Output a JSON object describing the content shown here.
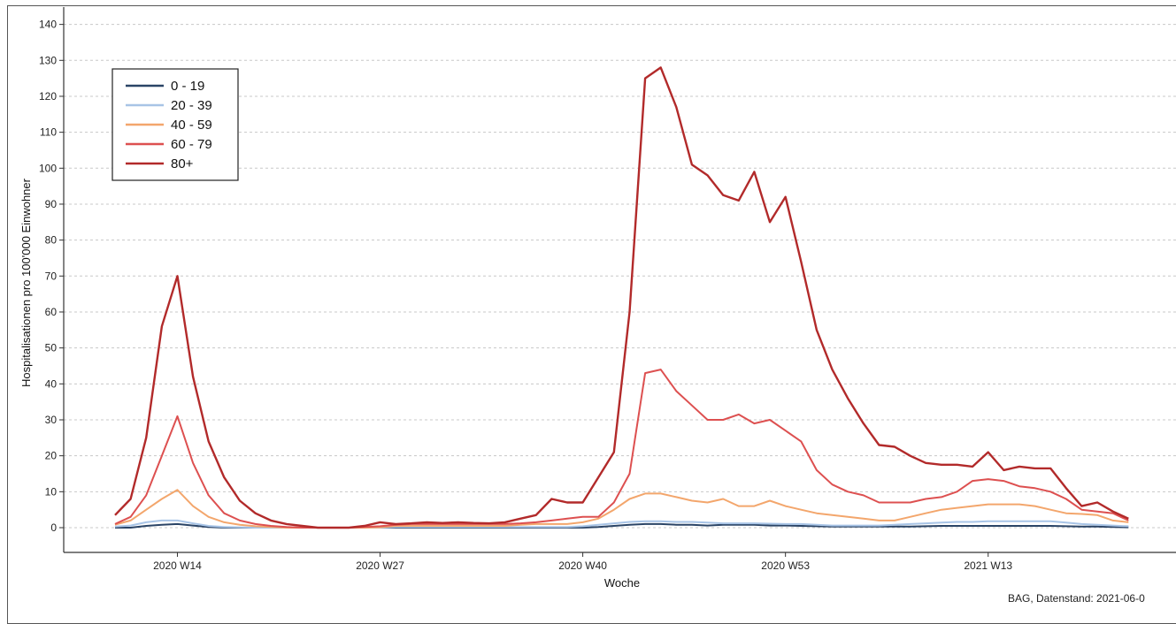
{
  "chart_data": {
    "type": "line",
    "title": "",
    "xlabel": "Woche",
    "ylabel": "Hospitalisationen pro 100'000 Einwohner",
    "ylim": [
      -7,
      143
    ],
    "yticks": [
      0,
      10,
      20,
      30,
      40,
      50,
      60,
      70,
      80,
      90,
      100,
      110,
      120,
      130,
      140
    ],
    "grid": "horizontal dashed",
    "legend_position": "top-left",
    "x_weeks": [
      "2020 W10",
      "2020 W11",
      "2020 W12",
      "2020 W13",
      "2020 W14",
      "2020 W15",
      "2020 W16",
      "2020 W17",
      "2020 W18",
      "2020 W19",
      "2020 W20",
      "2020 W21",
      "2020 W22",
      "2020 W23",
      "2020 W24",
      "2020 W25",
      "2020 W26",
      "2020 W27",
      "2020 W28",
      "2020 W29",
      "2020 W30",
      "2020 W31",
      "2020 W32",
      "2020 W33",
      "2020 W34",
      "2020 W35",
      "2020 W36",
      "2020 W37",
      "2020 W38",
      "2020 W39",
      "2020 W40",
      "2020 W41",
      "2020 W42",
      "2020 W43",
      "2020 W44",
      "2020 W45",
      "2020 W46",
      "2020 W47",
      "2020 W48",
      "2020 W49",
      "2020 W50",
      "2020 W51",
      "2020 W52",
      "2020 W53",
      "2021 W01",
      "2021 W02",
      "2021 W03",
      "2021 W04",
      "2021 W05",
      "2021 W06",
      "2021 W07",
      "2021 W08",
      "2021 W09",
      "2021 W10",
      "2021 W11",
      "2021 W12",
      "2021 W13",
      "2021 W14",
      "2021 W15",
      "2021 W16",
      "2021 W17",
      "2021 W18",
      "2021 W19",
      "2021 W20",
      "2021 W21",
      "2021 W22"
    ],
    "x_tick_labels": [
      {
        "week": "2020 W14",
        "label": "2020 W14"
      },
      {
        "week": "2020 W27",
        "label": "2020 W27"
      },
      {
        "week": "2020 W40",
        "label": "2020 W40"
      },
      {
        "week": "2020 W53",
        "label": "2020 W53"
      },
      {
        "week": "2021 W13",
        "label": "2021 W13"
      }
    ],
    "series": [
      {
        "name": "0 - 19",
        "color": "#2a4466",
        "values": [
          0,
          0,
          0.5,
          0.8,
          1,
          0.6,
          0.2,
          0,
          0,
          0,
          0,
          0,
          0,
          0,
          0,
          0,
          0,
          0,
          0,
          0,
          0,
          0,
          0,
          0,
          0,
          0,
          0,
          0,
          0,
          0,
          0,
          0.2,
          0.5,
          0.8,
          1,
          1,
          0.8,
          0.8,
          0.6,
          0.8,
          0.8,
          0.8,
          0.6,
          0.6,
          0.5,
          0.4,
          0.3,
          0.3,
          0.3,
          0.3,
          0.3,
          0.3,
          0.4,
          0.5,
          0.5,
          0.5,
          0.5,
          0.5,
          0.5,
          0.5,
          0.5,
          0.4,
          0.3,
          0.3,
          0.2,
          0.1
        ]
      },
      {
        "name": "20 - 39",
        "color": "#a8c4e6",
        "values": [
          0.3,
          0.6,
          1.5,
          2,
          2,
          1.2,
          0.5,
          0.2,
          0.1,
          0,
          0,
          0,
          0,
          0,
          0,
          0,
          0,
          0,
          0.2,
          0.2,
          0.2,
          0.2,
          0.2,
          0.2,
          0.2,
          0.2,
          0.2,
          0.2,
          0.2,
          0.2,
          0.4,
          0.8,
          1.2,
          1.6,
          1.8,
          1.8,
          1.6,
          1.6,
          1.4,
          1.2,
          1.2,
          1.2,
          1.1,
          1,
          1,
          0.8,
          0.6,
          0.6,
          0.6,
          0.6,
          0.8,
          1,
          1.2,
          1.4,
          1.6,
          1.6,
          1.8,
          1.8,
          1.8,
          1.8,
          1.8,
          1.4,
          1,
          0.8,
          0.6,
          0.4
        ]
      },
      {
        "name": "40 - 59",
        "color": "#f3a66c",
        "values": [
          0.8,
          2,
          5,
          8,
          10.5,
          6,
          3,
          1.5,
          0.8,
          0.4,
          0.2,
          0,
          0,
          0,
          0,
          0,
          0,
          0.1,
          0.5,
          0.5,
          0.5,
          0.5,
          0.5,
          0.5,
          0.5,
          0.5,
          0.8,
          1,
          1,
          1,
          1.5,
          2.5,
          5,
          8,
          9.5,
          9.5,
          8.5,
          7.5,
          7,
          8,
          6,
          6,
          7.5,
          6,
          5,
          4,
          3.5,
          3,
          2.5,
          2,
          2,
          3,
          4,
          5,
          5.5,
          6,
          6.5,
          6.5,
          6.5,
          6,
          5,
          4,
          3.8,
          3.5,
          2,
          1.5
        ]
      },
      {
        "name": "60 - 79",
        "color": "#dd5050",
        "values": [
          1,
          3,
          9,
          20,
          31,
          18,
          9,
          4,
          2,
          1,
          0.5,
          0.2,
          0,
          0,
          0,
          0,
          0.2,
          0.4,
          0.8,
          1,
          1,
          1,
          1,
          1,
          1,
          1,
          1.2,
          1.5,
          2,
          2.5,
          3,
          3,
          7,
          15,
          43,
          44,
          38,
          34,
          30,
          30,
          31.5,
          29,
          30,
          27,
          24,
          16,
          12,
          10,
          9,
          7,
          7,
          7,
          8,
          8.5,
          10,
          13,
          13.5,
          13,
          11.5,
          11,
          10,
          8,
          5,
          4.5,
          4,
          2
        ]
      },
      {
        "name": "80+",
        "color": "#b22a2a",
        "values": [
          3.5,
          8,
          25,
          56,
          70,
          42,
          24,
          14,
          7.5,
          4,
          2,
          1,
          0.5,
          0,
          0,
          0,
          0.5,
          1.5,
          1,
          1.2,
          1.5,
          1.3,
          1.5,
          1.3,
          1.2,
          1.5,
          2.5,
          3.5,
          8,
          7,
          7,
          14,
          21,
          60,
          125,
          128,
          117,
          101,
          98,
          92.5,
          91,
          99,
          85,
          92,
          74,
          55,
          44,
          36,
          29,
          23,
          22.5,
          20,
          18,
          17.5,
          17.5,
          17,
          21,
          16,
          17,
          16.5,
          16.5,
          11,
          6,
          7,
          4.5,
          2.5
        ]
      }
    ],
    "source_note": "BAG, Datenstand: 2021-06-0"
  }
}
